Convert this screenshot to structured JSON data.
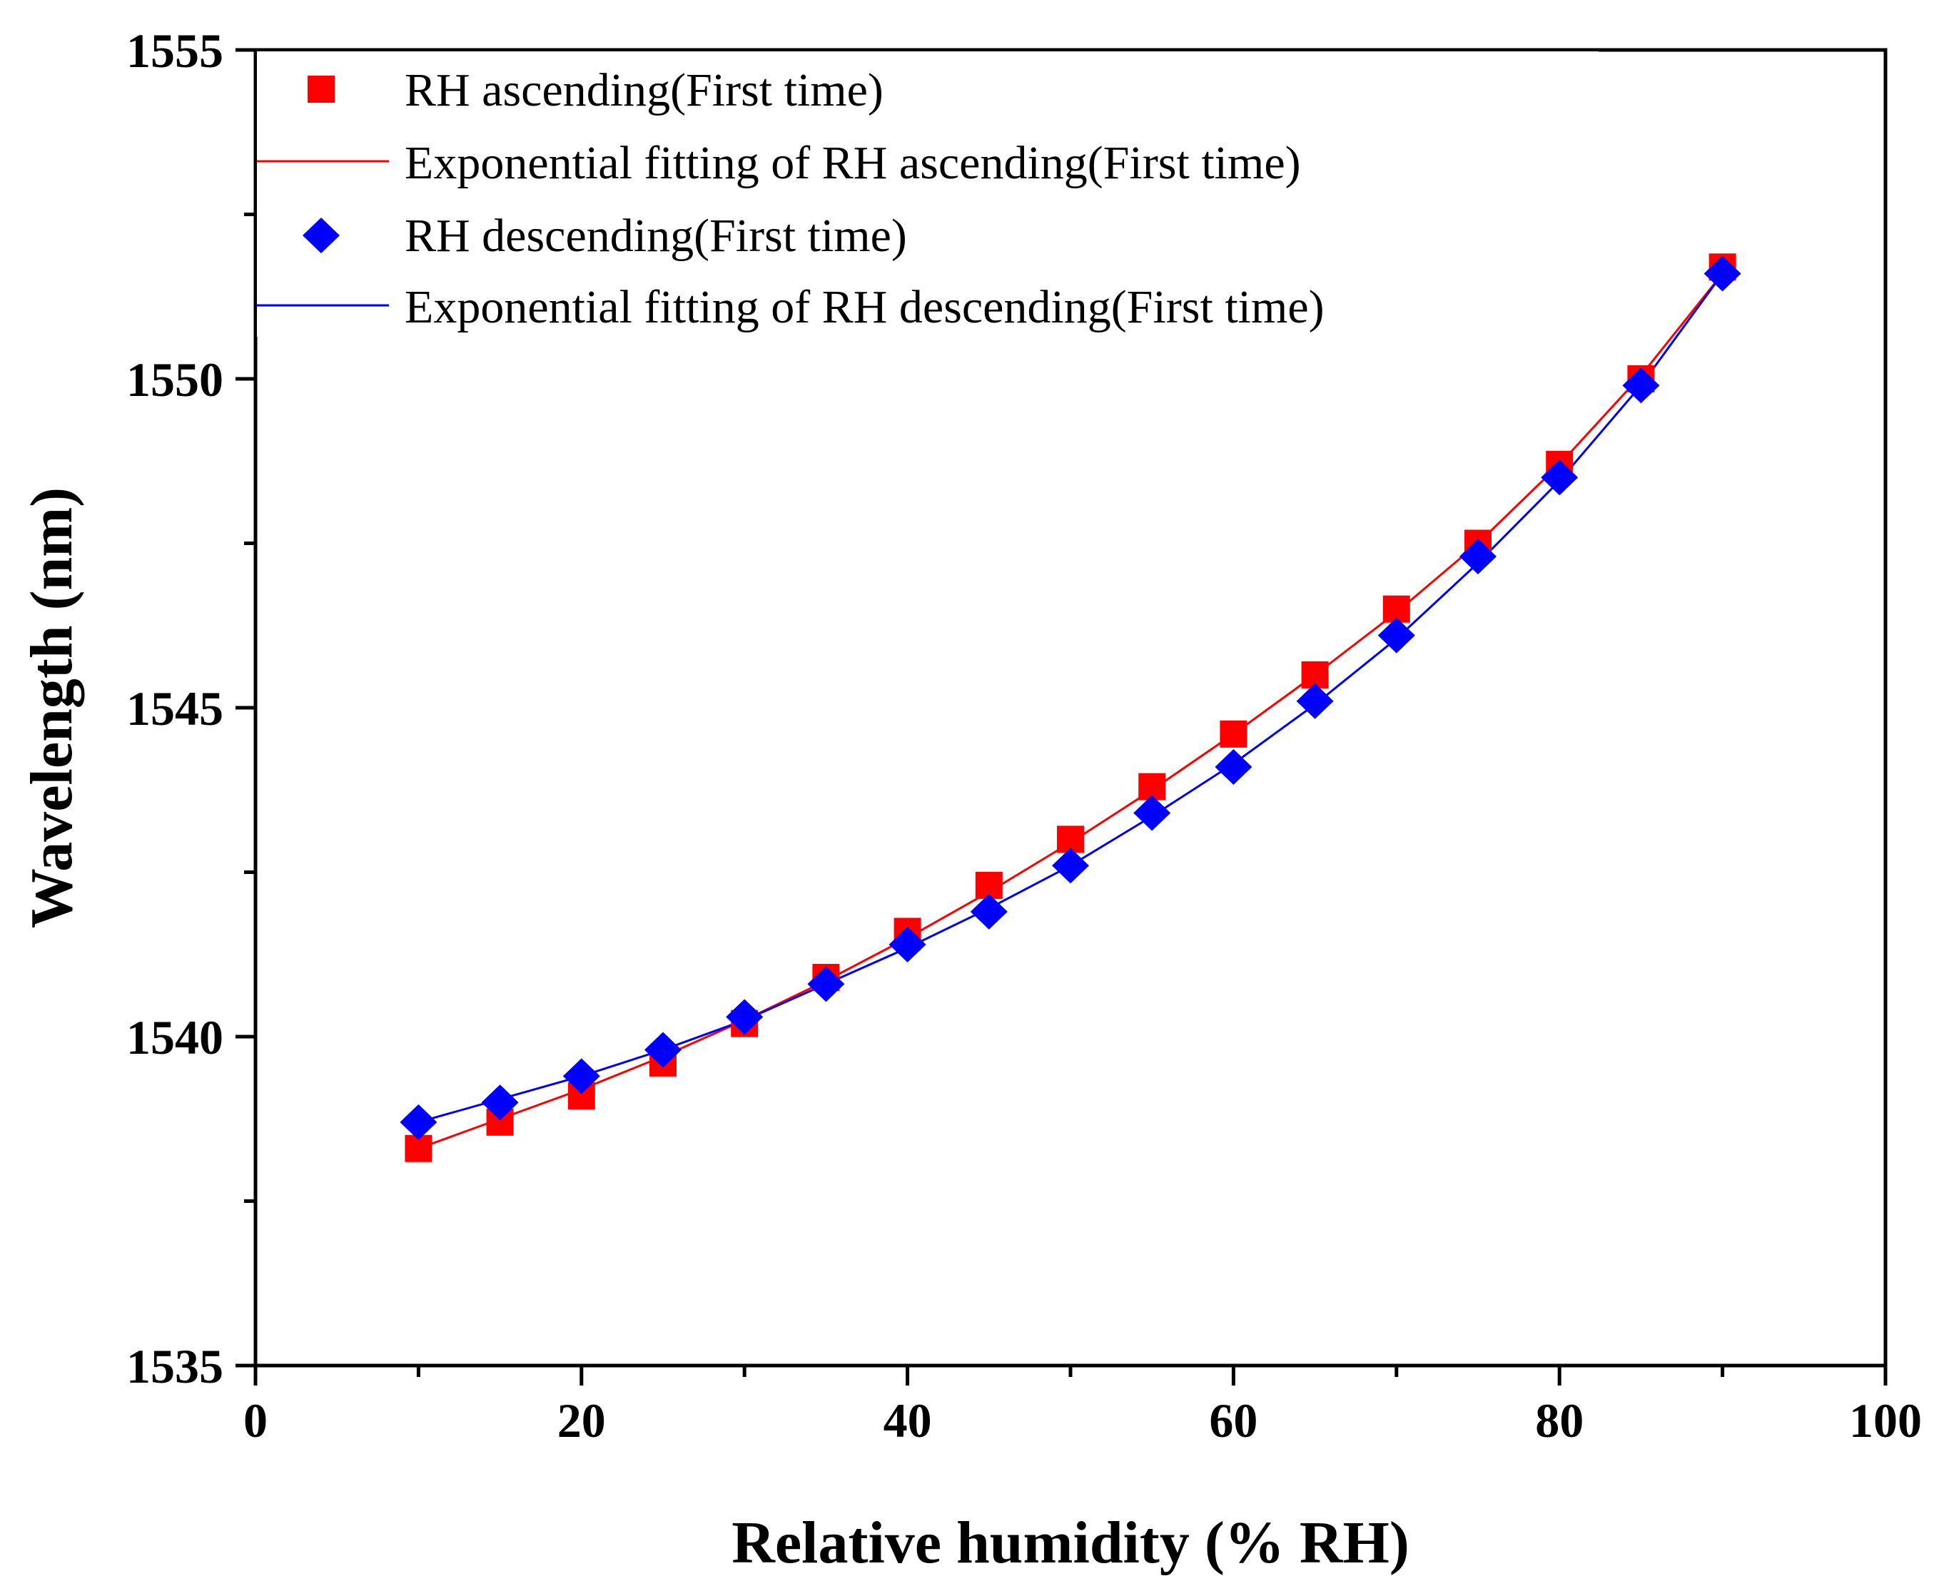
{
  "chart_data": {
    "type": "scatter",
    "title": "",
    "xlabel": "Relative humidity (% RH)",
    "ylabel": "Wavelength (nm)",
    "xlim": [
      0,
      100
    ],
    "ylim": [
      1535,
      1555
    ],
    "x_ticks": [
      "0",
      "20",
      "40",
      "60",
      "80",
      "100"
    ],
    "y_ticks": [
      "1535",
      "1540",
      "1545",
      "1550",
      "1555"
    ],
    "legend_position": "top-left",
    "grid": false,
    "x": [
      10,
      15,
      20,
      25,
      30,
      35,
      40,
      45,
      50,
      55,
      60,
      65,
      70,
      75,
      80,
      85,
      90
    ],
    "series": [
      {
        "name": "RH ascending(First time)",
        "kind": "markers",
        "marker": "square",
        "color": "#ff0000",
        "values": [
          1538.3,
          1538.7,
          1539.1,
          1539.6,
          1540.2,
          1540.9,
          1541.6,
          1542.3,
          1543.0,
          1543.8,
          1544.6,
          1545.5,
          1546.5,
          1547.5,
          1548.7,
          1550.0,
          1551.7
        ]
      },
      {
        "name": "Exponential fitting of RH ascending(First time)",
        "kind": "line",
        "color": "#ff0000",
        "values": [
          1538.3,
          1538.75,
          1539.2,
          1539.7,
          1540.25,
          1540.85,
          1541.5,
          1542.2,
          1542.95,
          1543.75,
          1544.6,
          1545.5,
          1546.45,
          1547.5,
          1548.7,
          1550.05,
          1551.6
        ]
      },
      {
        "name": "RH descending(First time)",
        "kind": "markers",
        "marker": "diamond",
        "color": "#0000ff",
        "values": [
          1538.7,
          1539.0,
          1539.4,
          1539.8,
          1540.3,
          1540.8,
          1541.4,
          1541.9,
          1542.6,
          1543.4,
          1544.1,
          1545.1,
          1546.1,
          1547.3,
          1548.5,
          1549.9,
          1551.6
        ]
      },
      {
        "name": "Exponential fitting of RH descending(First time)",
        "kind": "line",
        "color": "#0000ff",
        "values": [
          1538.7,
          1539.05,
          1539.4,
          1539.8,
          1540.25,
          1540.8,
          1541.35,
          1541.95,
          1542.6,
          1543.35,
          1544.15,
          1545.05,
          1546.05,
          1547.2,
          1548.45,
          1549.9,
          1551.6
        ]
      }
    ]
  }
}
